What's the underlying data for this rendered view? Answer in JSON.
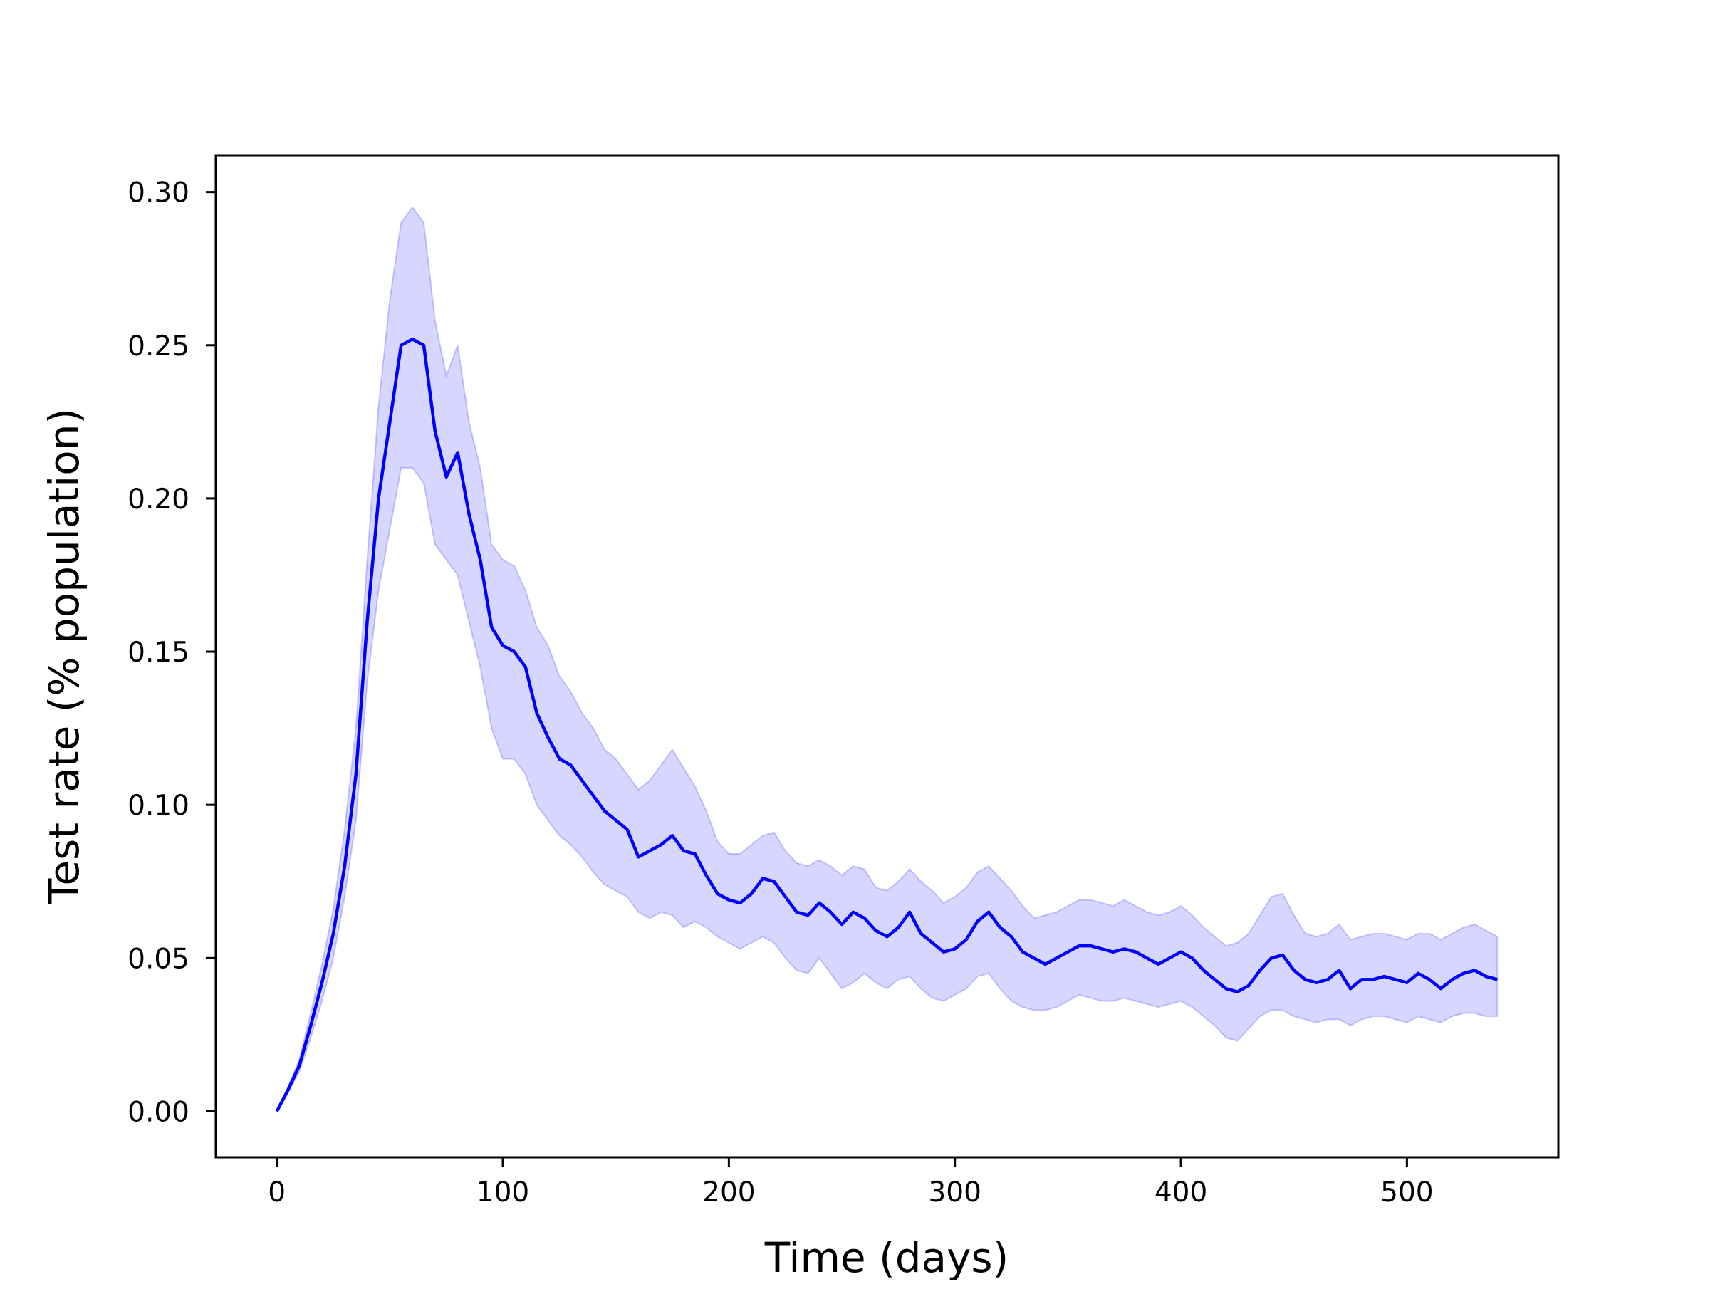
{
  "chart_data": {
    "type": "line",
    "title": "",
    "xlabel": "Time (days)",
    "ylabel": "Test rate (% population)",
    "xlim": [
      -27,
      567
    ],
    "ylim": [
      -0.015,
      0.312
    ],
    "xticks": [
      0,
      100,
      200,
      300,
      400,
      500
    ],
    "xtick_labels": [
      "0",
      "100",
      "200",
      "300",
      "400",
      "500"
    ],
    "yticks": [
      0.0,
      0.05,
      0.1,
      0.15,
      0.2,
      0.25,
      0.3
    ],
    "ytick_labels": [
      "0.00",
      "0.05",
      "0.10",
      "0.15",
      "0.20",
      "0.25",
      "0.30"
    ],
    "grid": false,
    "legend": "none",
    "colors": {
      "line": "#0000ff",
      "band": "#0000ff"
    },
    "series": [
      {
        "x": [
          0,
          5,
          10,
          15,
          20,
          25,
          30,
          35,
          40,
          45,
          50,
          55,
          60,
          65,
          70,
          75,
          80,
          85,
          90,
          95,
          100,
          105,
          110,
          115,
          120,
          125,
          130,
          135,
          140,
          145,
          150,
          155,
          160,
          165,
          170,
          175,
          180,
          185,
          190,
          195,
          200,
          205,
          210,
          215,
          220,
          225,
          230,
          235,
          240,
          245,
          250,
          255,
          260,
          265,
          270,
          275,
          280,
          285,
          290,
          295,
          300,
          305,
          310,
          315,
          320,
          325,
          330,
          335,
          340,
          345,
          350,
          355,
          360,
          365,
          370,
          375,
          380,
          385,
          390,
          395,
          400,
          405,
          410,
          415,
          420,
          425,
          430,
          435,
          440,
          445,
          450,
          455,
          460,
          465,
          470,
          475,
          480,
          485,
          490,
          495,
          500,
          505,
          510,
          515,
          520,
          525,
          530,
          535,
          540
        ],
        "y": [
          0.0,
          0.007,
          0.015,
          0.028,
          0.042,
          0.058,
          0.08,
          0.11,
          0.16,
          0.2,
          0.225,
          0.25,
          0.252,
          0.25,
          0.222,
          0.207,
          0.215,
          0.195,
          0.18,
          0.158,
          0.152,
          0.15,
          0.145,
          0.13,
          0.122,
          0.115,
          0.113,
          0.108,
          0.103,
          0.098,
          0.095,
          0.092,
          0.083,
          0.085,
          0.087,
          0.09,
          0.085,
          0.084,
          0.077,
          0.071,
          0.069,
          0.068,
          0.071,
          0.076,
          0.075,
          0.07,
          0.065,
          0.064,
          0.068,
          0.065,
          0.061,
          0.065,
          0.063,
          0.059,
          0.057,
          0.06,
          0.065,
          0.058,
          0.055,
          0.052,
          0.053,
          0.056,
          0.062,
          0.065,
          0.06,
          0.057,
          0.052,
          0.05,
          0.048,
          0.05,
          0.052,
          0.054,
          0.054,
          0.053,
          0.052,
          0.053,
          0.052,
          0.05,
          0.048,
          0.05,
          0.052,
          0.05,
          0.046,
          0.043,
          0.04,
          0.039,
          0.041,
          0.046,
          0.05,
          0.051,
          0.046,
          0.043,
          0.042,
          0.043,
          0.046,
          0.04,
          0.043,
          0.043,
          0.044,
          0.043,
          0.042,
          0.045,
          0.043,
          0.04,
          0.043,
          0.045,
          0.046,
          0.044,
          0.043
        ],
        "y_lower": [
          0.0,
          0.006,
          0.013,
          0.024,
          0.036,
          0.05,
          0.07,
          0.095,
          0.14,
          0.17,
          0.19,
          0.21,
          0.21,
          0.205,
          0.185,
          0.18,
          0.175,
          0.16,
          0.145,
          0.125,
          0.115,
          0.115,
          0.11,
          0.1,
          0.095,
          0.09,
          0.087,
          0.083,
          0.078,
          0.074,
          0.072,
          0.07,
          0.065,
          0.063,
          0.065,
          0.064,
          0.06,
          0.062,
          0.06,
          0.057,
          0.055,
          0.053,
          0.055,
          0.057,
          0.055,
          0.05,
          0.046,
          0.045,
          0.05,
          0.045,
          0.04,
          0.042,
          0.045,
          0.042,
          0.04,
          0.043,
          0.044,
          0.04,
          0.037,
          0.036,
          0.038,
          0.04,
          0.044,
          0.045,
          0.04,
          0.036,
          0.034,
          0.033,
          0.033,
          0.034,
          0.036,
          0.038,
          0.037,
          0.036,
          0.036,
          0.037,
          0.036,
          0.035,
          0.034,
          0.035,
          0.036,
          0.034,
          0.031,
          0.028,
          0.024,
          0.023,
          0.027,
          0.031,
          0.033,
          0.033,
          0.031,
          0.03,
          0.029,
          0.03,
          0.03,
          0.028,
          0.03,
          0.031,
          0.031,
          0.03,
          0.029,
          0.031,
          0.03,
          0.029,
          0.031,
          0.032,
          0.032,
          0.031,
          0.031
        ],
        "y_upper": [
          0.0,
          0.008,
          0.017,
          0.032,
          0.048,
          0.066,
          0.092,
          0.125,
          0.18,
          0.23,
          0.265,
          0.29,
          0.295,
          0.29,
          0.258,
          0.24,
          0.25,
          0.225,
          0.21,
          0.185,
          0.18,
          0.178,
          0.17,
          0.158,
          0.152,
          0.142,
          0.137,
          0.13,
          0.125,
          0.118,
          0.115,
          0.11,
          0.105,
          0.108,
          0.113,
          0.118,
          0.112,
          0.106,
          0.098,
          0.088,
          0.084,
          0.084,
          0.087,
          0.09,
          0.091,
          0.085,
          0.081,
          0.08,
          0.082,
          0.08,
          0.077,
          0.08,
          0.079,
          0.073,
          0.072,
          0.075,
          0.079,
          0.075,
          0.072,
          0.068,
          0.07,
          0.073,
          0.078,
          0.08,
          0.076,
          0.072,
          0.067,
          0.063,
          0.064,
          0.065,
          0.067,
          0.069,
          0.069,
          0.068,
          0.067,
          0.069,
          0.067,
          0.065,
          0.064,
          0.065,
          0.067,
          0.064,
          0.06,
          0.057,
          0.054,
          0.055,
          0.058,
          0.064,
          0.07,
          0.071,
          0.064,
          0.058,
          0.057,
          0.058,
          0.061,
          0.056,
          0.057,
          0.058,
          0.058,
          0.057,
          0.056,
          0.058,
          0.058,
          0.056,
          0.058,
          0.06,
          0.061,
          0.059,
          0.057
        ]
      }
    ]
  }
}
